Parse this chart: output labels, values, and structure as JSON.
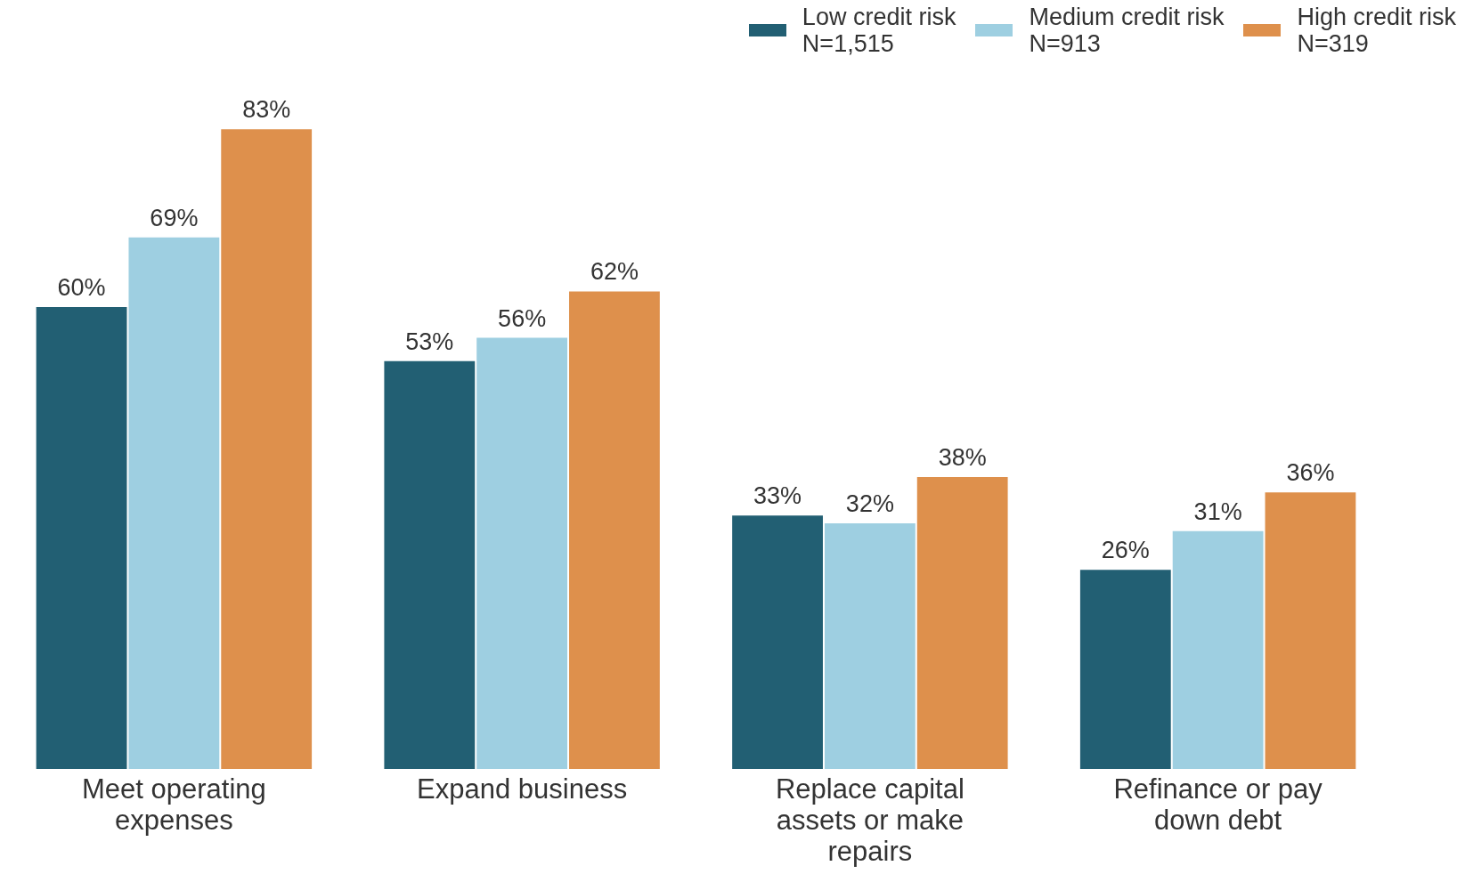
{
  "chart_data": {
    "type": "bar",
    "categories": [
      "Meet operating expenses",
      "Expand business",
      "Replace capital assets or make repairs",
      "Refinance or pay down debt"
    ],
    "series": [
      {
        "name": "Low credit risk\nN=1,515",
        "color": "#225f73",
        "values": [
          60,
          53,
          33,
          26
        ],
        "value_labels": [
          "60%",
          "53%",
          "33%",
          "26%"
        ]
      },
      {
        "name": "Medium credit risk\nN=913",
        "color": "#9ecfe1",
        "values": [
          69,
          56,
          32,
          31
        ],
        "value_labels": [
          "69%",
          "56%",
          "32%",
          "31%"
        ]
      },
      {
        "name": "High credit risk\nN=319",
        "color": "#de904c",
        "values": [
          83,
          62,
          38,
          36
        ],
        "value_labels": [
          "83%",
          "62%",
          "38%",
          "36%"
        ]
      }
    ],
    "legend": "top right",
    "tick_labels": "x"
  }
}
